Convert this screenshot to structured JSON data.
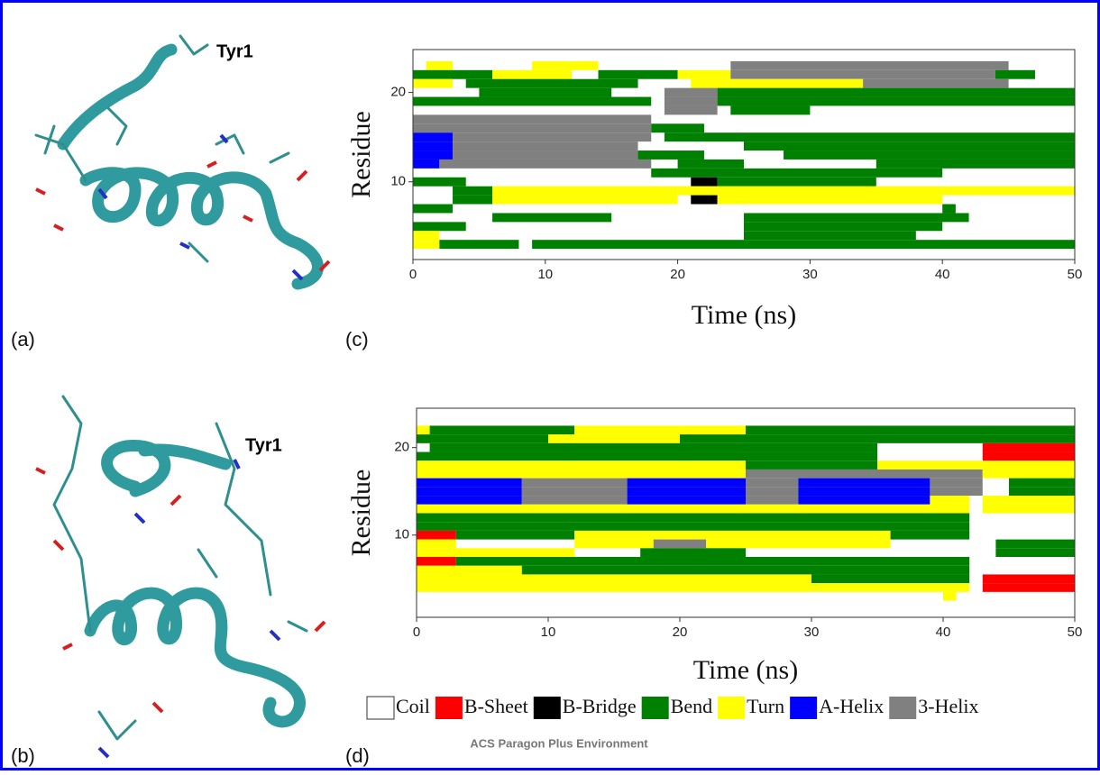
{
  "figure": {
    "footer": "ACS Paragon Plus Environment",
    "panels": [
      {
        "label": "(a)",
        "annotation": "Tyr1"
      },
      {
        "label": "(b)",
        "annotation": "Tyr1"
      }
    ]
  },
  "legend": [
    {
      "name": "Coil",
      "color": "#ffffff"
    },
    {
      "name": "B-Sheet",
      "color": "#ff0000"
    },
    {
      "name": "B-Bridge",
      "color": "#000000"
    },
    {
      "name": "Bend",
      "color": "#008000"
    },
    {
      "name": "Turn",
      "color": "#ffff00"
    },
    {
      "name": "A-Helix",
      "color": "#0000ff"
    },
    {
      "name": "3-Helix",
      "color": "#808080"
    }
  ],
  "chart_data": [
    {
      "type": "dssp",
      "panel_label": "(c)",
      "x_label": "Time (ns)",
      "y_label": "Residue",
      "xlim": [
        0,
        50
      ],
      "ylim": [
        1.3,
        24.8
      ],
      "xticks": [
        0,
        10,
        20,
        30,
        40,
        50
      ],
      "yticks": [
        10,
        20
      ],
      "segments": [
        [
          23,
          1,
          3,
          4
        ],
        [
          23,
          9,
          14,
          4
        ],
        [
          23,
          24,
          45,
          6
        ],
        [
          22,
          0,
          6,
          3
        ],
        [
          22,
          6,
          12,
          4
        ],
        [
          22,
          14,
          20,
          3
        ],
        [
          22,
          20,
          24,
          4
        ],
        [
          22,
          24,
          44,
          6
        ],
        [
          22,
          44,
          47,
          3
        ],
        [
          21,
          0,
          3,
          4
        ],
        [
          21,
          4,
          17,
          3
        ],
        [
          21,
          21,
          34,
          4
        ],
        [
          21,
          34,
          45,
          6
        ],
        [
          20,
          5,
          15,
          3
        ],
        [
          20,
          19,
          23,
          6
        ],
        [
          20,
          23,
          50,
          3
        ],
        [
          19,
          0,
          18,
          3
        ],
        [
          19,
          19,
          23,
          6
        ],
        [
          19,
          23,
          50,
          3
        ],
        [
          18,
          19,
          23,
          6
        ],
        [
          18,
          24,
          30,
          3
        ],
        [
          17,
          0,
          18,
          6
        ],
        [
          16,
          0,
          18,
          6
        ],
        [
          16,
          18,
          22,
          3
        ],
        [
          15,
          0,
          3,
          5
        ],
        [
          15,
          3,
          18,
          6
        ],
        [
          15,
          19,
          50,
          3
        ],
        [
          14,
          0,
          3,
          5
        ],
        [
          14,
          3,
          17,
          6
        ],
        [
          14,
          25,
          50,
          3
        ],
        [
          13,
          0,
          3,
          5
        ],
        [
          13,
          3,
          17,
          6
        ],
        [
          13,
          17,
          22,
          3
        ],
        [
          13,
          28,
          50,
          3
        ],
        [
          12,
          0,
          2,
          5
        ],
        [
          12,
          2,
          18,
          6
        ],
        [
          12,
          20,
          25,
          3
        ],
        [
          12,
          35,
          50,
          3
        ],
        [
          11,
          18,
          40,
          3
        ],
        [
          10,
          0,
          4,
          3
        ],
        [
          10,
          21,
          23,
          2
        ],
        [
          10,
          23,
          35,
          3
        ],
        [
          9,
          3,
          6,
          3
        ],
        [
          9,
          6,
          20,
          4
        ],
        [
          9,
          20,
          50,
          4
        ],
        [
          8,
          3,
          6,
          3
        ],
        [
          8,
          6,
          20,
          4
        ],
        [
          8,
          21,
          23,
          2
        ],
        [
          8,
          23,
          40,
          4
        ],
        [
          7,
          0,
          3,
          3
        ],
        [
          7,
          40,
          41,
          3
        ],
        [
          6,
          6,
          15,
          3
        ],
        [
          6,
          25,
          42,
          3
        ],
        [
          5,
          0,
          4,
          3
        ],
        [
          5,
          25,
          40,
          3
        ],
        [
          4,
          0,
          2,
          4
        ],
        [
          4,
          25,
          38,
          3
        ],
        [
          3,
          0,
          2,
          4
        ],
        [
          3,
          2,
          8,
          3
        ],
        [
          3,
          9,
          50,
          3
        ]
      ]
    },
    {
      "type": "dssp",
      "panel_label": "(d)",
      "x_label": "Time (ns)",
      "y_label": "Residue",
      "xlim": [
        0,
        50
      ],
      "ylim": [
        0.6,
        24.5
      ],
      "xticks": [
        0,
        10,
        20,
        30,
        40,
        50
      ],
      "yticks": [
        10,
        20
      ],
      "segments": [
        [
          22,
          0,
          1,
          4
        ],
        [
          22,
          1,
          12,
          3
        ],
        [
          22,
          12,
          25,
          4
        ],
        [
          22,
          25,
          50,
          3
        ],
        [
          21,
          0,
          10,
          3
        ],
        [
          21,
          10,
          20,
          4
        ],
        [
          21,
          20,
          50,
          3
        ],
        [
          20,
          1,
          35,
          3
        ],
        [
          20,
          43,
          50,
          1
        ],
        [
          19,
          0,
          35,
          3
        ],
        [
          19,
          43,
          50,
          1
        ],
        [
          18,
          0,
          25,
          4
        ],
        [
          18,
          25,
          35,
          3
        ],
        [
          18,
          35,
          50,
          4
        ],
        [
          17,
          0,
          25,
          4
        ],
        [
          17,
          25,
          43,
          6
        ],
        [
          17,
          43,
          50,
          4
        ],
        [
          16,
          0,
          8,
          5
        ],
        [
          16,
          8,
          16,
          6
        ],
        [
          16,
          16,
          25,
          5
        ],
        [
          16,
          25,
          29,
          6
        ],
        [
          16,
          29,
          39,
          5
        ],
        [
          16,
          39,
          43,
          6
        ],
        [
          16,
          45,
          50,
          3
        ],
        [
          15,
          0,
          8,
          5
        ],
        [
          15,
          8,
          16,
          6
        ],
        [
          15,
          16,
          25,
          5
        ],
        [
          15,
          25,
          29,
          6
        ],
        [
          15,
          29,
          39,
          5
        ],
        [
          15,
          39,
          43,
          6
        ],
        [
          15,
          45,
          50,
          3
        ],
        [
          14,
          0,
          8,
          5
        ],
        [
          14,
          8,
          16,
          6
        ],
        [
          14,
          16,
          25,
          5
        ],
        [
          14,
          25,
          29,
          6
        ],
        [
          14,
          29,
          39,
          5
        ],
        [
          14,
          39,
          42,
          4
        ],
        [
          14,
          43,
          50,
          4
        ],
        [
          13,
          0,
          42,
          4
        ],
        [
          13,
          43,
          50,
          4
        ],
        [
          12,
          0,
          42,
          3
        ],
        [
          11,
          0,
          42,
          3
        ],
        [
          10,
          0,
          3,
          1
        ],
        [
          10,
          3,
          12,
          3
        ],
        [
          10,
          12,
          36,
          4
        ],
        [
          10,
          36,
          42,
          3
        ],
        [
          9,
          0,
          3,
          4
        ],
        [
          9,
          12,
          18,
          4
        ],
        [
          9,
          18,
          22,
          6
        ],
        [
          9,
          22,
          36,
          4
        ],
        [
          9,
          44,
          50,
          3
        ],
        [
          8,
          0,
          12,
          4
        ],
        [
          8,
          17,
          25,
          3
        ],
        [
          8,
          44,
          50,
          3
        ],
        [
          7,
          0,
          3,
          1
        ],
        [
          7,
          3,
          42,
          3
        ],
        [
          6,
          0,
          8,
          4
        ],
        [
          6,
          8,
          42,
          3
        ],
        [
          5,
          0,
          30,
          4
        ],
        [
          5,
          30,
          42,
          3
        ],
        [
          5,
          43,
          50,
          1
        ],
        [
          4,
          0,
          42,
          4
        ],
        [
          4,
          43,
          50,
          1
        ],
        [
          3,
          40,
          41,
          4
        ]
      ]
    }
  ]
}
